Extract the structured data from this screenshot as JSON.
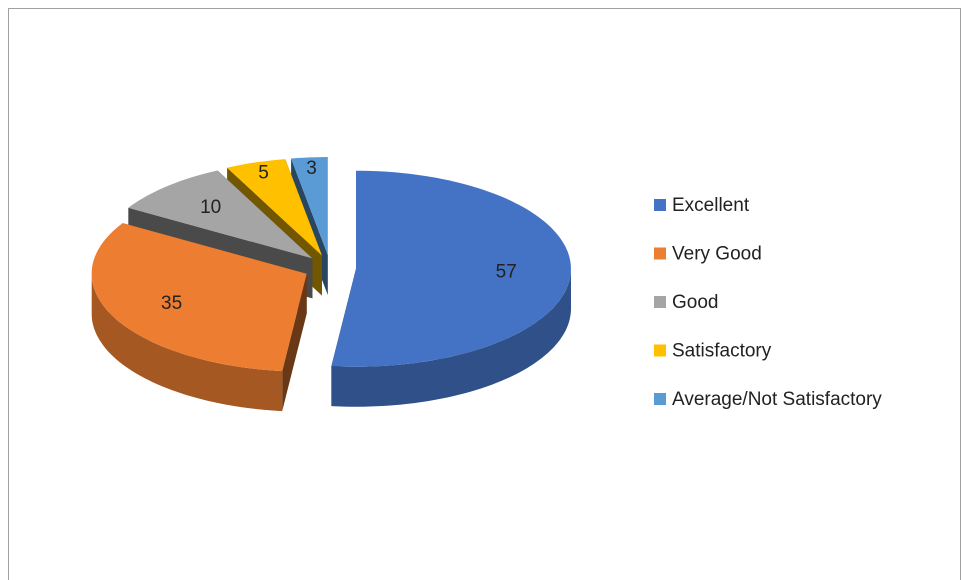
{
  "chart_data": {
    "type": "pie",
    "categories": [
      "Excellent",
      "Very Good",
      "Good",
      "Satisfactory",
      "Average/Not Satisfactory"
    ],
    "values": [
      57,
      35,
      10,
      5,
      3
    ],
    "colors": [
      "#4472c4",
      "#ed7d31",
      "#a5a5a5",
      "#ffc000",
      "#5b9bd5"
    ],
    "legend": "right"
  }
}
